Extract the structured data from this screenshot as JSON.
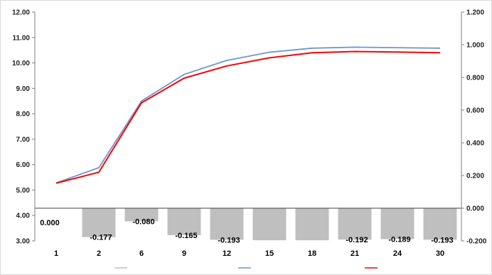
{
  "chart_data": {
    "type": "bar",
    "categories": [
      "1",
      "2",
      "6",
      "9",
      "12",
      "15",
      "18",
      "21",
      "24",
      "30"
    ],
    "y_left": {
      "min": 3.0,
      "max": 12.0,
      "step": 1.0,
      "tick_labels": [
        "3.00",
        "4.00",
        "5.00",
        "6.00",
        "7.00",
        "8.00",
        "9.00",
        "10.00",
        "11.00",
        "12.00"
      ]
    },
    "y_right": {
      "min": -0.2,
      "max": 1.2,
      "step": 0.2,
      "tick_labels": [
        "-0.200",
        "0.000",
        "0.200",
        "0.400",
        "0.600",
        "0.800",
        "1.000",
        "1.200"
      ]
    },
    "grid": false,
    "legend_position": "bottom",
    "series": [
      {
        "name": "",
        "kind": "bar",
        "axis": "right",
        "color": "#bfbfbf",
        "values": [
          0.0,
          -0.177,
          -0.08,
          -0.165,
          -0.193,
          -0.196,
          -0.196,
          -0.192,
          -0.189,
          -0.193
        ],
        "labels": [
          "0.000",
          "-0.177",
          "-0.080",
          "-0.165",
          "-0.193",
          "",
          "",
          "-0.192",
          "-0.189",
          "-0.193"
        ]
      },
      {
        "name": "",
        "kind": "line",
        "axis": "left",
        "color": "#6a98d2",
        "values": [
          5.28,
          5.88,
          8.5,
          9.55,
          10.1,
          10.42,
          10.58,
          10.62,
          10.6,
          10.58
        ]
      },
      {
        "name": "",
        "kind": "line",
        "axis": "left",
        "color": "#ff0000",
        "values": [
          5.27,
          5.7,
          8.43,
          9.4,
          9.88,
          10.2,
          10.4,
          10.45,
          10.43,
          10.4
        ]
      }
    ]
  }
}
